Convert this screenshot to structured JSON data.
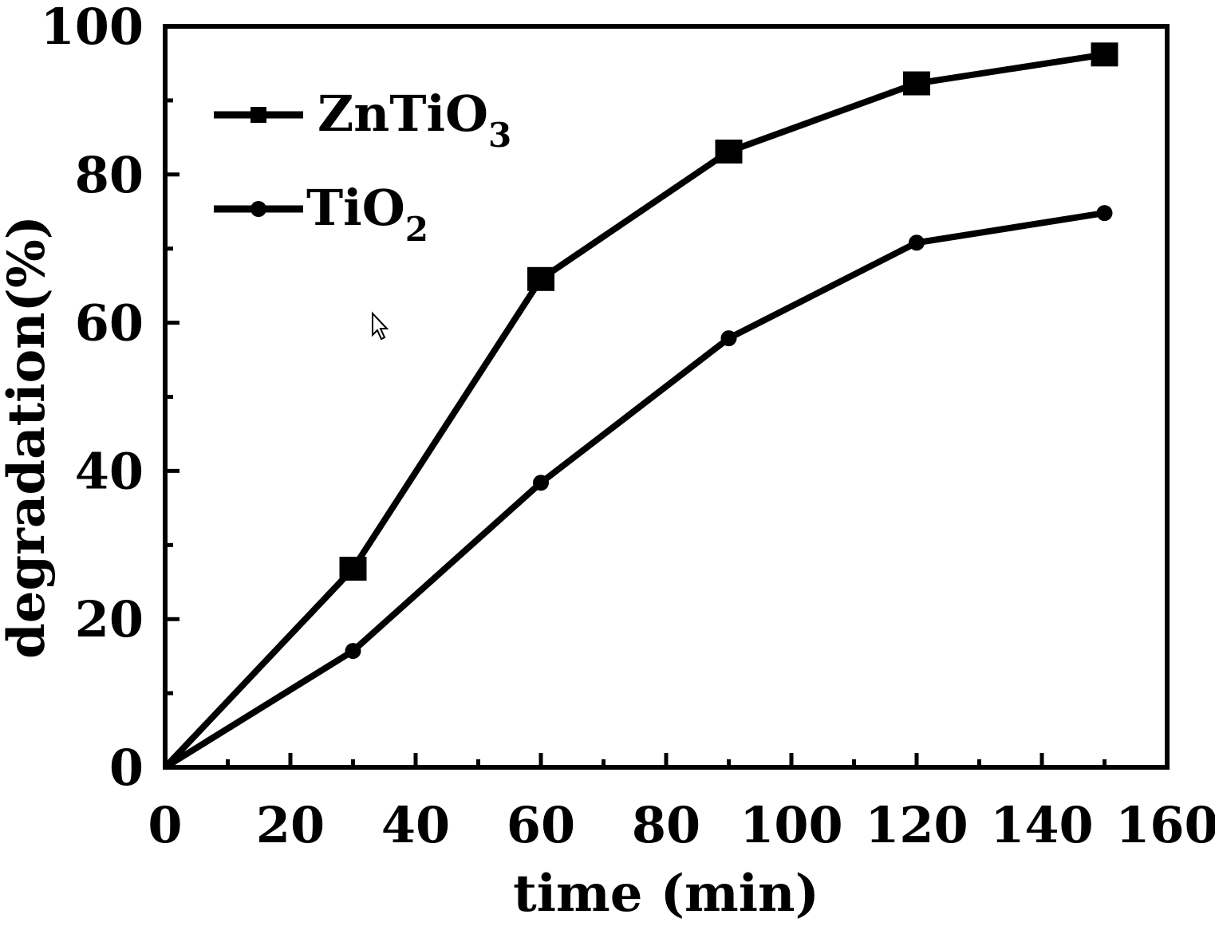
{
  "chart_data": {
    "type": "line",
    "xlabel": "time (min)",
    "ylabel": "degradation(%)",
    "xlim": [
      0,
      160
    ],
    "ylim": [
      0,
      100
    ],
    "x_ticks": [
      "0",
      "20",
      "40",
      "60",
      "80",
      "100",
      "120",
      "140",
      "160"
    ],
    "y_ticks": [
      "0",
      "20",
      "40",
      "60",
      "80",
      "100"
    ],
    "grid": false,
    "legend_position": "top-left",
    "series": [
      {
        "name": "ZnTiO3",
        "name_base": "ZnTiO",
        "name_sub": "3",
        "marker": "square",
        "color": "#000000",
        "x": [
          0,
          30,
          60,
          90,
          120,
          150
        ],
        "y": [
          0,
          26.8,
          65.9,
          83.1,
          92.3,
          96.2
        ]
      },
      {
        "name": "TiO2",
        "name_base": "TiO",
        "name_sub": "2",
        "marker": "circle",
        "color": "#000000",
        "x": [
          0,
          30,
          60,
          90,
          120,
          150
        ],
        "y": [
          0,
          15.7,
          38.4,
          57.9,
          70.8,
          74.8
        ]
      }
    ]
  }
}
